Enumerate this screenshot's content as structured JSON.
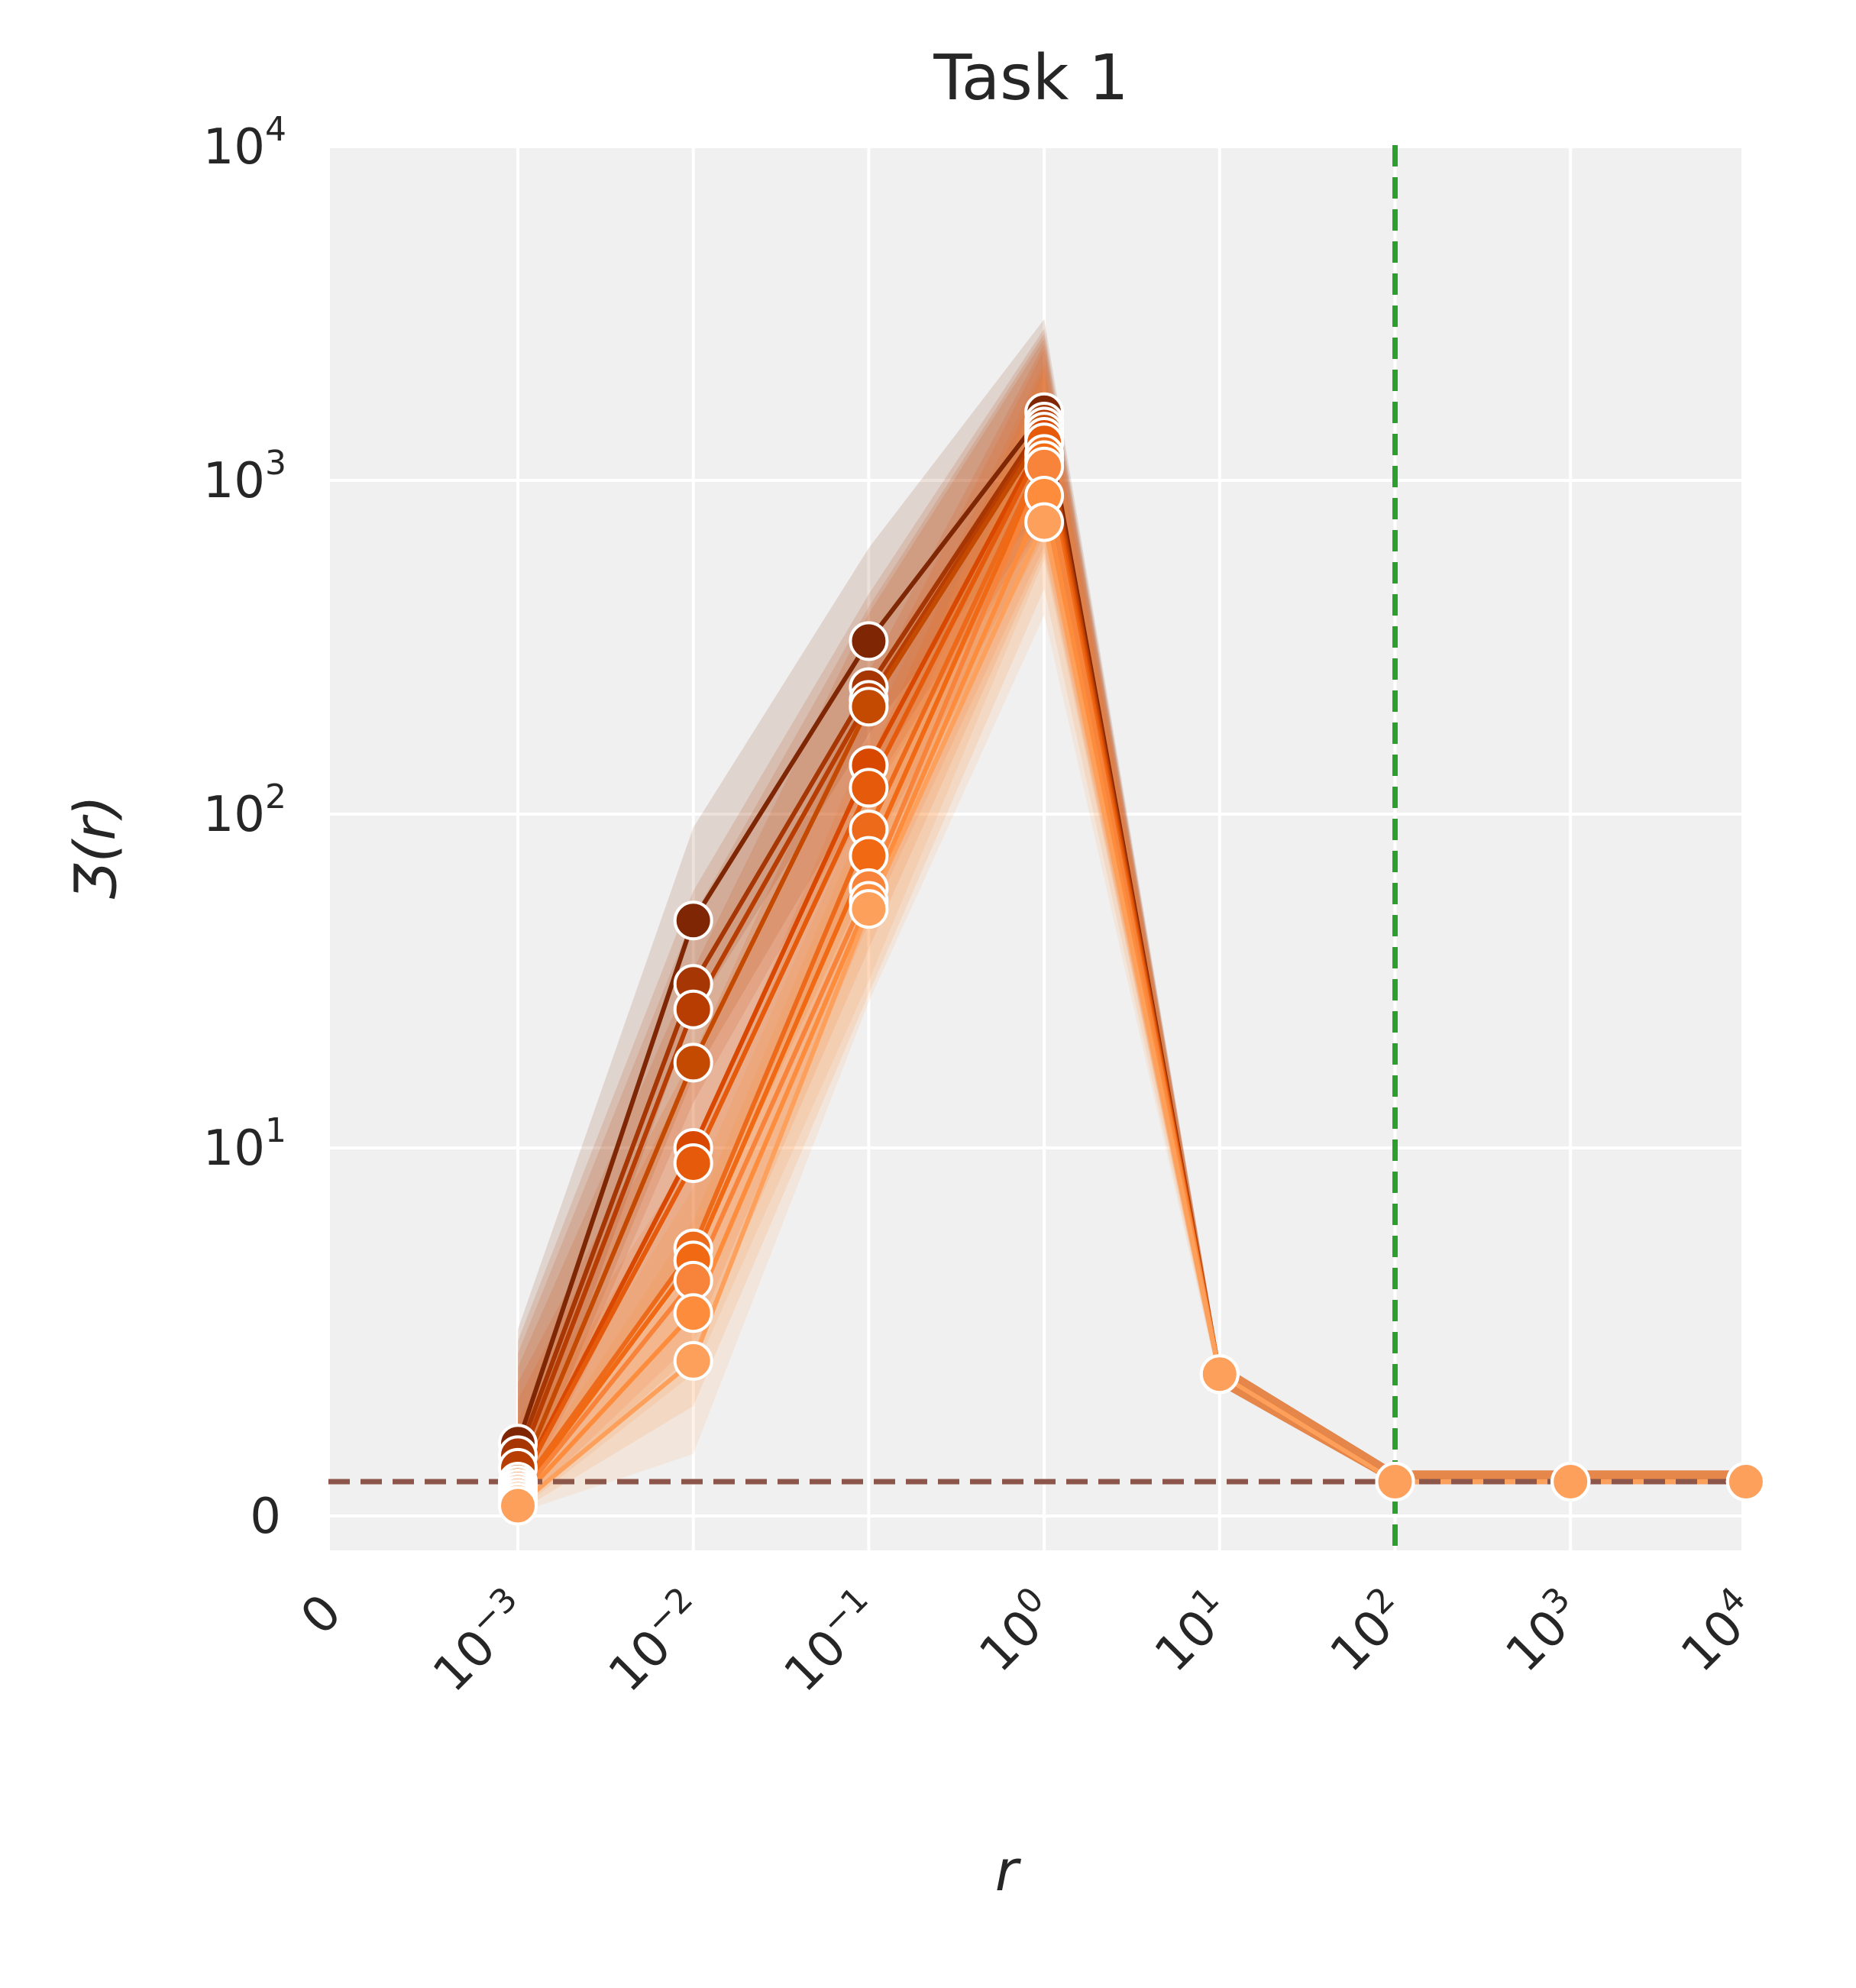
{
  "chart_data": {
    "type": "line",
    "title": "Task 1",
    "xlabel": "r",
    "ylabel": "Ʒ(r)",
    "x_scale": "symlog",
    "y_scale": "symlog",
    "xlim": [
      0,
      10000
    ],
    "ylim": [
      0,
      10000
    ],
    "x_ticks": [
      0,
      0.001,
      0.01,
      0.1,
      1,
      10,
      100,
      1000,
      10000
    ],
    "x_tick_labels": [
      {
        "base": "0",
        "exp": ""
      },
      {
        "base": "10",
        "exp": "−3"
      },
      {
        "base": "10",
        "exp": "−2"
      },
      {
        "base": "10",
        "exp": "−1"
      },
      {
        "base": "10",
        "exp": "0"
      },
      {
        "base": "10",
        "exp": "1"
      },
      {
        "base": "10",
        "exp": "2"
      },
      {
        "base": "10",
        "exp": "3"
      },
      {
        "base": "10",
        "exp": "4"
      }
    ],
    "y_ticks": [
      0,
      10,
      100,
      1000,
      10000
    ],
    "y_tick_labels": [
      {
        "base": "0",
        "exp": ""
      },
      {
        "base": "10",
        "exp": "1"
      },
      {
        "base": "10",
        "exp": "2"
      },
      {
        "base": "10",
        "exp": "3"
      },
      {
        "base": "10",
        "exp": "4"
      }
    ],
    "grid": true,
    "background": "#f0f0f0",
    "x": [
      0.001,
      0.01,
      0.1,
      1,
      10,
      100,
      1000,
      10000
    ],
    "series": [
      {
        "color": "#7f2704",
        "values": [
          1.3,
          48,
          330,
          1600,
          2.1,
          1.0,
          1.0,
          1.0
        ]
      },
      {
        "color": "#a63603",
        "values": [
          1.2,
          31,
          240,
          1500,
          2.1,
          1.0,
          1.0,
          1.0
        ]
      },
      {
        "color": "#b83d02",
        "values": [
          1.1,
          26,
          220,
          1450,
          2.1,
          1.0,
          1.0,
          1.0
        ]
      },
      {
        "color": "#c44a02",
        "values": [
          1.0,
          18,
          210,
          1400,
          2.1,
          1.0,
          1.0,
          1.0
        ]
      },
      {
        "color": "#d94801",
        "values": [
          0.9,
          10,
          140,
          1350,
          2.1,
          1.0,
          1.0,
          1.0
        ]
      },
      {
        "color": "#e55a0b",
        "values": [
          0.8,
          9,
          120,
          1300,
          2.1,
          1.0,
          1.0,
          1.0
        ]
      },
      {
        "color": "#ed6a1a",
        "values": [
          0.7,
          5,
          90,
          1200,
          2.1,
          1.0,
          1.0,
          1.0
        ]
      },
      {
        "color": "#f16913",
        "values": [
          0.6,
          4.6,
          75,
          1150,
          2.1,
          1.0,
          1.0,
          1.0
        ]
      },
      {
        "color": "#f7843a",
        "values": [
          0.5,
          4,
          60,
          1100,
          2.1,
          1.0,
          1.0,
          1.0
        ]
      },
      {
        "color": "#fd8d3c",
        "values": [
          0.4,
          3.2,
          55,
          900,
          2.1,
          1.0,
          1.0,
          1.0
        ]
      },
      {
        "color": "#fda05c",
        "values": [
          0.3,
          2.3,
          52,
          750,
          2.1,
          1.0,
          1.0,
          1.0
        ]
      }
    ],
    "reference_lines": [
      {
        "orientation": "horizontal",
        "value": 1.0,
        "color": "#8c564b",
        "style": "dashed"
      },
      {
        "orientation": "vertical",
        "value": 100,
        "color": "#2ca02c",
        "style": "dashed"
      }
    ]
  }
}
